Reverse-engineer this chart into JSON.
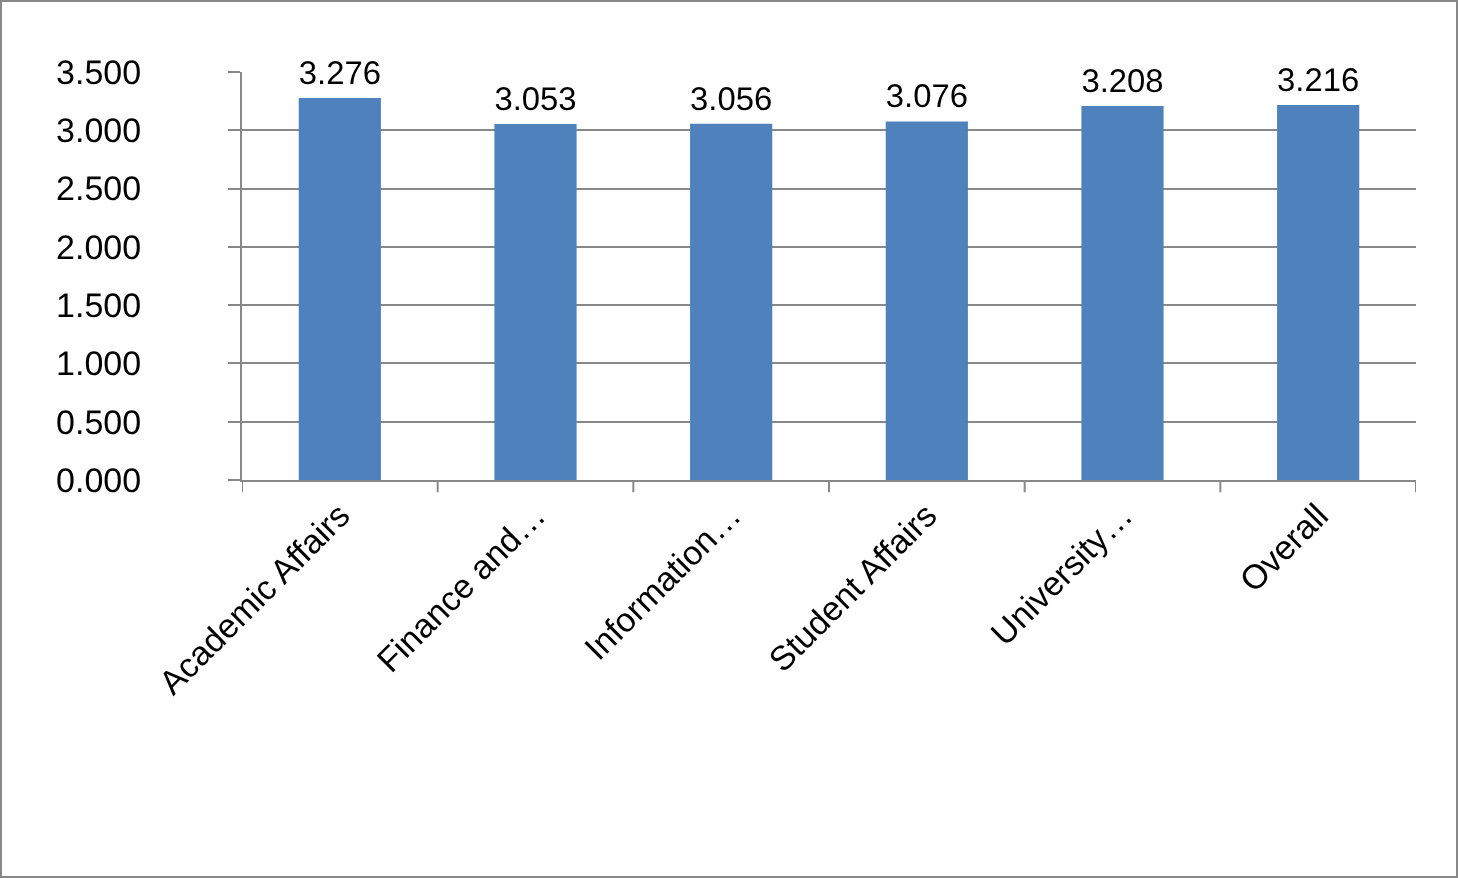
{
  "chart_data": {
    "type": "bar",
    "categories": [
      "Academic Affairs",
      "Finance and…",
      "Information…",
      "Student Affairs",
      "University…",
      "Overall"
    ],
    "values": [
      3.276,
      3.053,
      3.056,
      3.076,
      3.208,
      3.216
    ],
    "color": "#4f81bd",
    "ylim": [
      0,
      3.5
    ],
    "yticks": [
      {
        "value": 0,
        "label": "0.000"
      },
      {
        "value": 0.5,
        "label": "0.500"
      },
      {
        "value": 1,
        "label": "1.000"
      },
      {
        "value": 1.5,
        "label": "1.500"
      },
      {
        "value": 2,
        "label": "2.000"
      },
      {
        "value": 2.5,
        "label": "2.500"
      },
      {
        "value": 3,
        "label": "3.000"
      },
      {
        "value": 3.5,
        "label": "3.500"
      }
    ],
    "grid": "y",
    "data_labels": true
  }
}
